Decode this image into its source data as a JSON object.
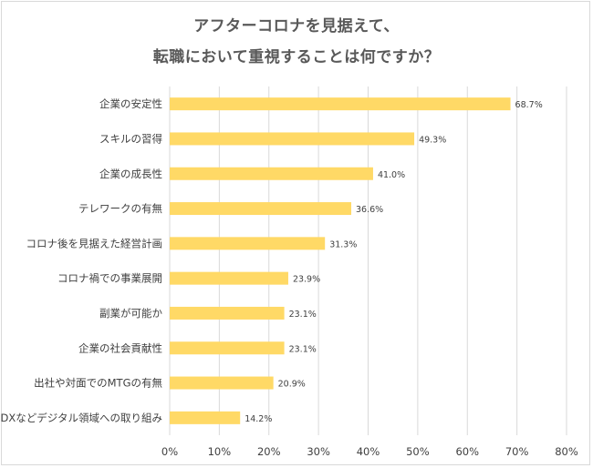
{
  "chart_data": {
    "type": "bar",
    "orientation": "horizontal",
    "title_lines": [
      "アフターコロナを見据えて、",
      "転職において重視することは何ですか？"
    ],
    "categories": [
      "企業の安定性",
      "スキルの習得",
      "企業の成長性",
      "テレワークの有無",
      "コロナ後を見据えた経営計画",
      "コロナ禍での事業展開",
      "副業が可能か",
      "企業の社会貢献性",
      "出社や対面でのMTGの有無",
      "DXなどデジタル領域への取り組み"
    ],
    "values": [
      68.7,
      49.3,
      41.0,
      36.6,
      31.3,
      23.9,
      23.1,
      23.1,
      20.9,
      14.2
    ],
    "value_labels": [
      "68.7%",
      "49.3%",
      "41.0%",
      "36.6%",
      "31.3%",
      "23.9%",
      "23.1%",
      "23.1%",
      "20.9%",
      "14.2%"
    ],
    "x_ticks": [
      "0%",
      "10%",
      "20%",
      "30%",
      "40%",
      "50%",
      "60%",
      "70%",
      "80%"
    ],
    "xlim": [
      0,
      80
    ],
    "grid": true,
    "legend": "none",
    "bar_color": "#ffd966",
    "grid_color": "#d9d9d9"
  }
}
